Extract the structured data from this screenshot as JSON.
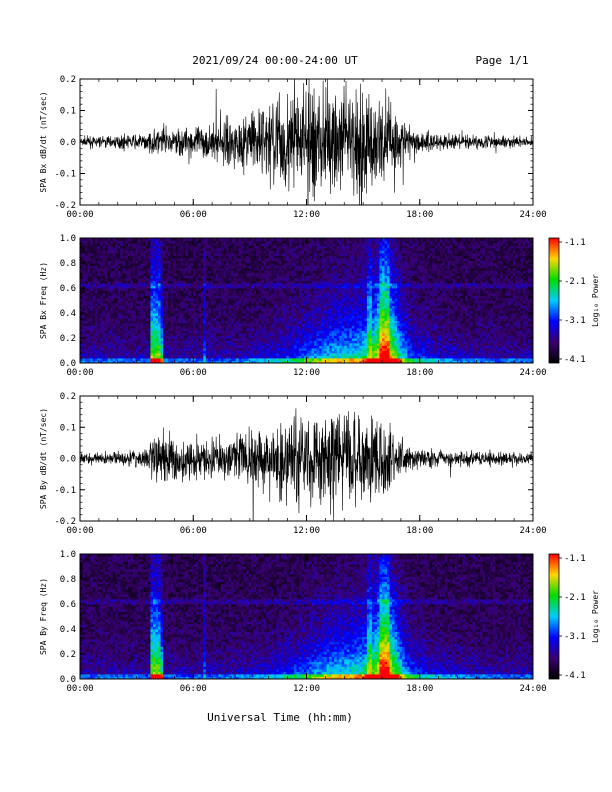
{
  "header": {
    "date_range": "2021/09/24  00:00-24:00 UT",
    "page": "Page 1/1"
  },
  "xlabel": "Universal Time (hh:mm)",
  "x_ticks": [
    "00:00",
    "06:00",
    "12:00",
    "18:00",
    "24:00"
  ],
  "colorbar": {
    "label": "Log₁₀ Power",
    "ticks": [
      "-1.1",
      "-2.1",
      "-3.1",
      "-4.1"
    ],
    "colors": [
      "#ff0000",
      "#ffd700",
      "#00dd00",
      "#00ccff",
      "#0000ff",
      "#3a0070",
      "#000000"
    ]
  },
  "chart_data": [
    {
      "type": "line",
      "title": "",
      "ylabel": "SPA Bx dB/dt (nT/sec)",
      "ylim": [
        -0.2,
        0.2
      ],
      "y_ticks": [
        "0.2",
        "0.1",
        "0.0",
        "-0.1",
        "-0.2"
      ],
      "xlim_hours": [
        0,
        24
      ],
      "envelope": {
        "x_hours": [
          0,
          2,
          3.5,
          4,
          6,
          8,
          9,
          10,
          12,
          14,
          16,
          17,
          18,
          20,
          22,
          24
        ],
        "amplitude": [
          0.02,
          0.025,
          0.03,
          0.06,
          0.06,
          0.09,
          0.12,
          0.18,
          0.22,
          0.22,
          0.2,
          0.1,
          0.05,
          0.03,
          0.025,
          0.02
        ]
      }
    },
    {
      "type": "heatmap",
      "title": "",
      "ylabel": "SPA Bx Freq (Hz)",
      "ylim": [
        0.0,
        1.0
      ],
      "y_ticks": [
        "1.0",
        "0.8",
        "0.6",
        "0.4",
        "0.2",
        "0.0"
      ],
      "xlim_hours": [
        0,
        24
      ],
      "zlabel": "Log₁₀ Power",
      "zlim": [
        -4.1,
        -1.1
      ]
    },
    {
      "type": "line",
      "title": "",
      "ylabel": "SPA By dB/dt (nT/sec)",
      "ylim": [
        -0.2,
        0.2
      ],
      "y_ticks": [
        "0.2",
        "0.1",
        "0.0",
        "-0.1",
        "-0.2"
      ],
      "xlim_hours": [
        0,
        24
      ],
      "envelope": {
        "x_hours": [
          0,
          2,
          3.5,
          4,
          6,
          8,
          9,
          10,
          12,
          14,
          16,
          17,
          18,
          20,
          22,
          24
        ],
        "amplitude": [
          0.02,
          0.025,
          0.04,
          0.12,
          0.07,
          0.09,
          0.11,
          0.15,
          0.2,
          0.2,
          0.18,
          0.08,
          0.04,
          0.03,
          0.03,
          0.02
        ]
      }
    },
    {
      "type": "heatmap",
      "title": "",
      "ylabel": "SPA By Freq (Hz)",
      "ylim": [
        0.0,
        1.0
      ],
      "y_ticks": [
        "1.0",
        "0.8",
        "0.6",
        "0.4",
        "0.2",
        "0.0"
      ],
      "xlim_hours": [
        0,
        24
      ],
      "zlabel": "Log₁₀ Power",
      "zlim": [
        -4.1,
        -1.1
      ]
    }
  ]
}
